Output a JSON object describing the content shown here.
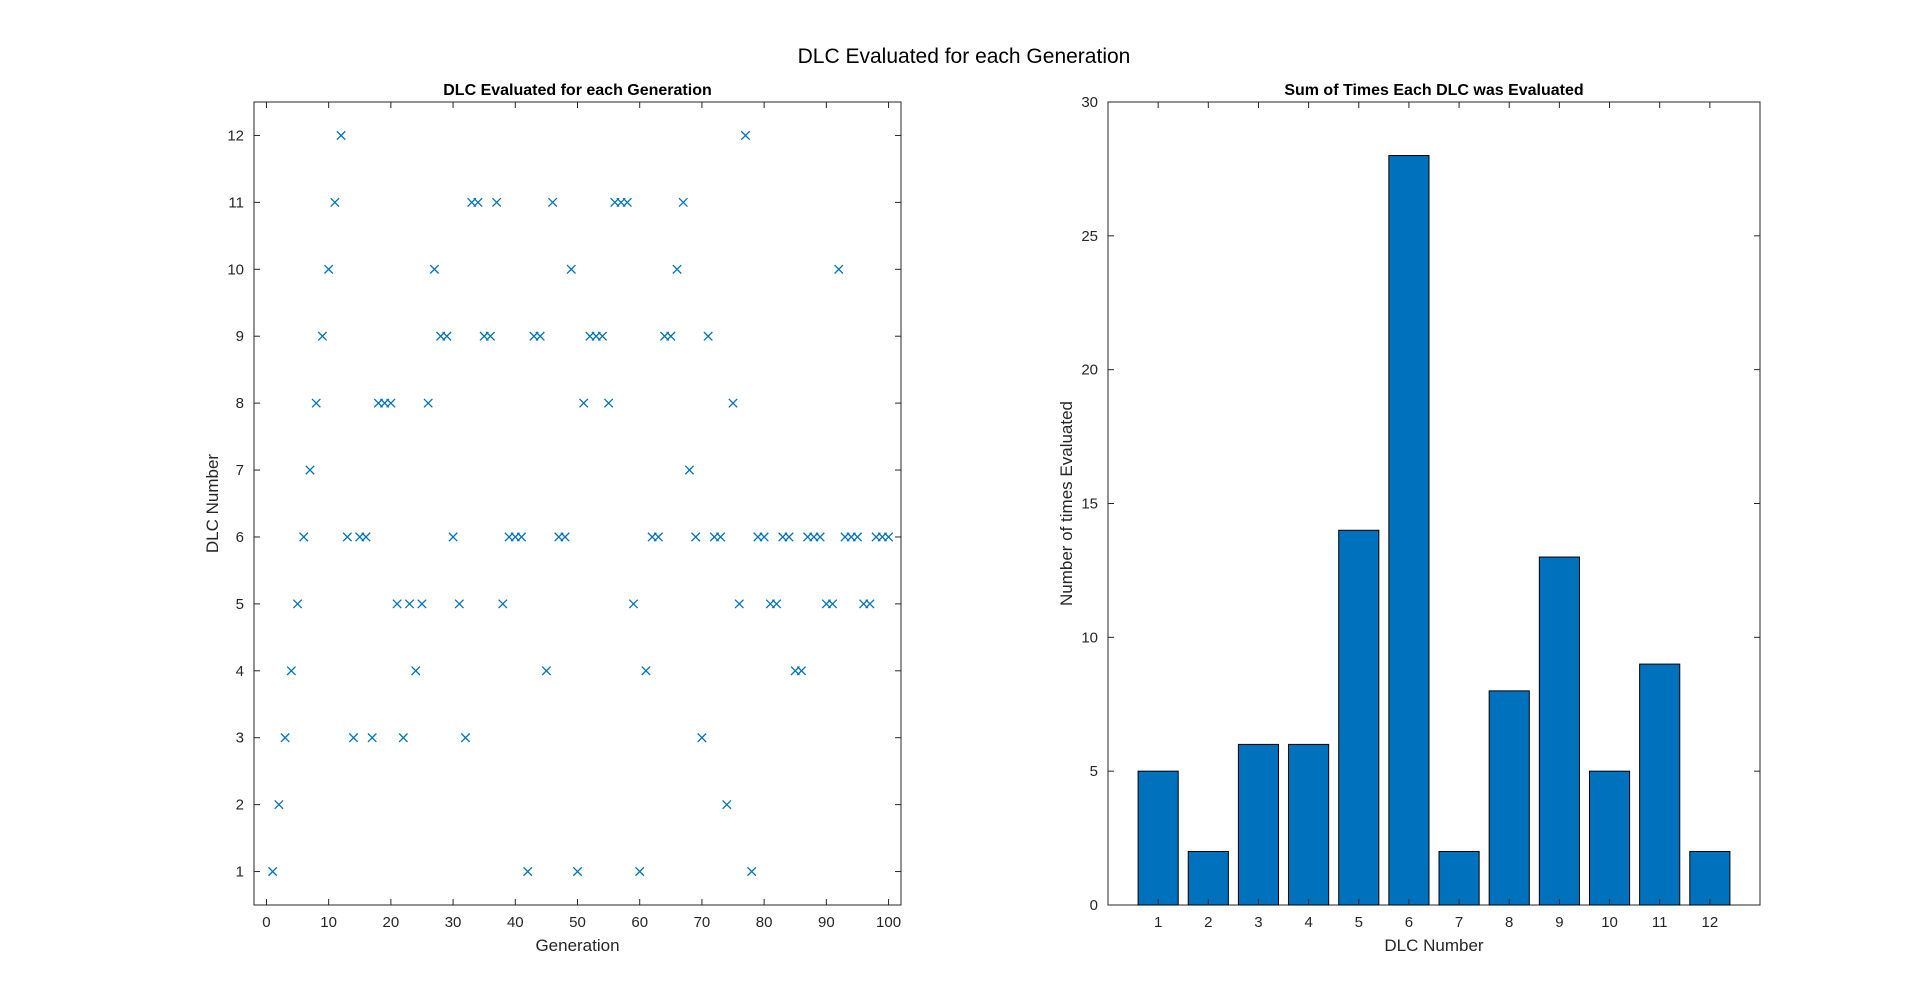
{
  "figure_title": "DLC Evaluated for each Generation",
  "chart_data": [
    {
      "type": "scatter",
      "title": "DLC Evaluated for each Generation",
      "xlabel": "Generation",
      "ylabel": "DLC Number",
      "xlim": [
        -2,
        102
      ],
      "ylim": [
        0.5,
        12.5
      ],
      "xticks": [
        "0",
        "10",
        "20",
        "30",
        "40",
        "50",
        "60",
        "70",
        "80",
        "90",
        "100"
      ],
      "yticks": [
        "1",
        "2",
        "3",
        "4",
        "5",
        "6",
        "7",
        "8",
        "9",
        "10",
        "11",
        "12"
      ],
      "marker": "x",
      "color": "#0072BD",
      "x": [
        1,
        2,
        3,
        4,
        5,
        6,
        7,
        8,
        9,
        10,
        11,
        12,
        13,
        14,
        15,
        16,
        17,
        18,
        19,
        20,
        21,
        22,
        23,
        24,
        25,
        26,
        27,
        28,
        29,
        30,
        31,
        32,
        33,
        34,
        35,
        36,
        37,
        38,
        39,
        40,
        41,
        42,
        43,
        44,
        45,
        46,
        47,
        48,
        49,
        50,
        51,
        52,
        53,
        54,
        55,
        56,
        57,
        58,
        59,
        60,
        61,
        62,
        63,
        64,
        65,
        66,
        67,
        68,
        69,
        70,
        71,
        72,
        73,
        74,
        75,
        76,
        77,
        78,
        79,
        80,
        81,
        82,
        83,
        84,
        85,
        86,
        87,
        88,
        89,
        90,
        91,
        92,
        93,
        94,
        95,
        96,
        97,
        98,
        99,
        100
      ],
      "y": [
        1,
        2,
        3,
        4,
        5,
        6,
        7,
        8,
        9,
        10,
        11,
        12,
        6,
        3,
        6,
        6,
        3,
        8,
        8,
        8,
        5,
        3,
        5,
        4,
        5,
        8,
        10,
        9,
        9,
        6,
        5,
        3,
        11,
        11,
        9,
        9,
        11,
        5,
        6,
        6,
        6,
        1,
        9,
        9,
        4,
        11,
        6,
        6,
        10,
        1,
        8,
        9,
        9,
        9,
        8,
        11,
        11,
        11,
        5,
        1,
        4,
        6,
        6,
        9,
        9,
        10,
        11,
        7,
        6,
        3,
        9,
        6,
        6,
        2,
        8,
        5,
        12,
        1,
        6,
        6,
        5,
        5,
        6,
        6,
        4,
        4,
        6,
        6,
        6,
        5,
        5,
        10,
        6,
        6,
        6,
        5,
        5,
        6,
        6,
        6
      ]
    },
    {
      "type": "bar",
      "title": "Sum of Times Each DLC was Evaluated",
      "xlabel": "DLC Number",
      "ylabel": "Number of times Evaluated",
      "ylim": [
        0,
        30
      ],
      "yticks": [
        "0",
        "5",
        "10",
        "15",
        "20",
        "25",
        "30"
      ],
      "color": "#0072BD",
      "categories": [
        "1",
        "2",
        "3",
        "4",
        "5",
        "6",
        "7",
        "8",
        "9",
        "10",
        "11",
        "12"
      ],
      "values": [
        5,
        2,
        6,
        6,
        14,
        28,
        2,
        8,
        13,
        5,
        9,
        2
      ]
    }
  ]
}
